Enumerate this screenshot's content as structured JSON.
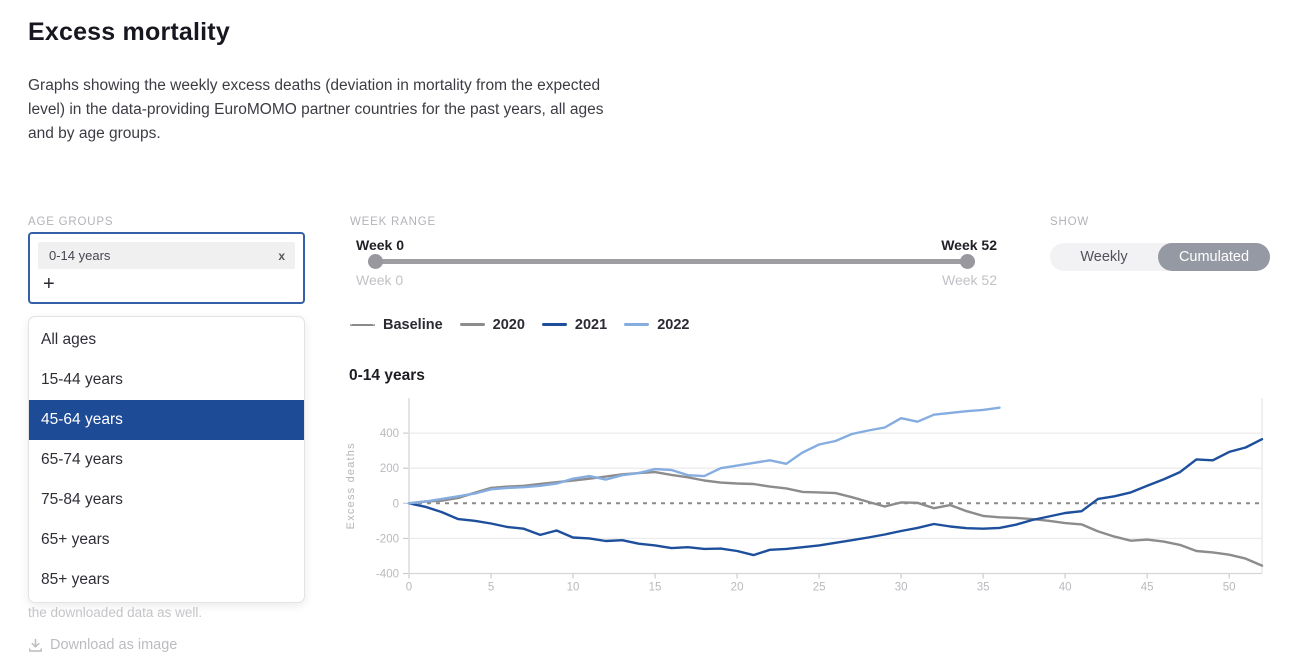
{
  "page": {
    "title": "Excess mortality",
    "description": "Graphs showing the weekly excess deaths (deviation in mortality from the expected level) in the data-providing EuroMOMO partner countries for the past years, all ages and by age groups."
  },
  "controls": {
    "age_groups": {
      "label": "AGE GROUPS",
      "chips": [
        {
          "label": "0-14 years",
          "remove_icon": "x"
        }
      ],
      "add_icon": "+",
      "dropdown": {
        "options": [
          "All ages",
          "15-44 years",
          "45-64 years",
          "65-74 years",
          "75-84 years",
          "65+ years",
          "85+ years"
        ],
        "highlighted": "45-64 years",
        "highlight_color": "#1d4b96"
      }
    },
    "week_range": {
      "label": "WEEK RANGE",
      "start_label": "Week 0",
      "end_label": "Week 52",
      "min_label": "Week 0",
      "max_label": "Week 52"
    },
    "show": {
      "label": "SHOW",
      "options": [
        "Weekly",
        "Cumulated"
      ],
      "selected": "Cumulated"
    }
  },
  "legend": [
    {
      "label": "Baseline",
      "color": "#8a8a8a",
      "dashed": true
    },
    {
      "label": "2020",
      "color": "#8c8c8c",
      "dashed": false
    },
    {
      "label": "2021",
      "color": "#1d4f9c",
      "dashed": false
    },
    {
      "label": "2022",
      "color": "#85ade0",
      "dashed": false
    }
  ],
  "footer": {
    "note": "the downloaded data as well.",
    "download_label": "Download as image"
  },
  "chart_data": {
    "type": "line",
    "title": "0-14 years",
    "xlabel": "",
    "ylabel": "Excess deaths",
    "xlim": [
      0,
      52
    ],
    "ylim": [
      -400,
      600
    ],
    "x_ticks": [
      0,
      5,
      10,
      15,
      20,
      25,
      30,
      35,
      40,
      45,
      50
    ],
    "y_ticks": [
      400,
      200,
      0,
      -200,
      -400
    ],
    "grid": true,
    "legend_position": "top-left",
    "baseline": {
      "name": "Baseline",
      "value": 0,
      "color": "#8a8a8a",
      "dashed": true
    },
    "series": [
      {
        "name": "2020",
        "color": "#8c8c8c",
        "x_start": 0,
        "values": [
          0,
          10,
          15,
          30,
          60,
          88,
          95,
          100,
          110,
          120,
          130,
          140,
          152,
          165,
          172,
          178,
          162,
          148,
          130,
          118,
          113,
          110,
          95,
          85,
          65,
          62,
          58,
          35,
          8,
          -18,
          5,
          3,
          -28,
          -10,
          -45,
          -72,
          -80,
          -83,
          -90,
          -100,
          -113,
          -120,
          -160,
          -190,
          -213,
          -207,
          -218,
          -237,
          -272,
          -280,
          -293,
          -315,
          -355
        ]
      },
      {
        "name": "2021",
        "color": "#1d4f9c",
        "x_start": 0,
        "values": [
          0,
          -20,
          -50,
          -90,
          -100,
          -115,
          -135,
          -145,
          -180,
          -155,
          -195,
          -200,
          -215,
          -210,
          -230,
          -240,
          -255,
          -250,
          -260,
          -258,
          -272,
          -295,
          -265,
          -260,
          -250,
          -240,
          -225,
          -210,
          -195,
          -178,
          -158,
          -140,
          -118,
          -132,
          -142,
          -145,
          -140,
          -122,
          -95,
          -75,
          -55,
          -45,
          25,
          40,
          62,
          100,
          136,
          178,
          250,
          245,
          293,
          318,
          365
        ]
      },
      {
        "name": "2022",
        "color": "#85ade0",
        "x_start": 0,
        "values": [
          0,
          10,
          25,
          40,
          55,
          80,
          88,
          92,
          100,
          112,
          140,
          155,
          135,
          160,
          172,
          195,
          190,
          160,
          155,
          200,
          215,
          230,
          245,
          225,
          290,
          335,
          355,
          395,
          415,
          432,
          485,
          465,
          505,
          515,
          525,
          532,
          545
        ]
      }
    ]
  }
}
